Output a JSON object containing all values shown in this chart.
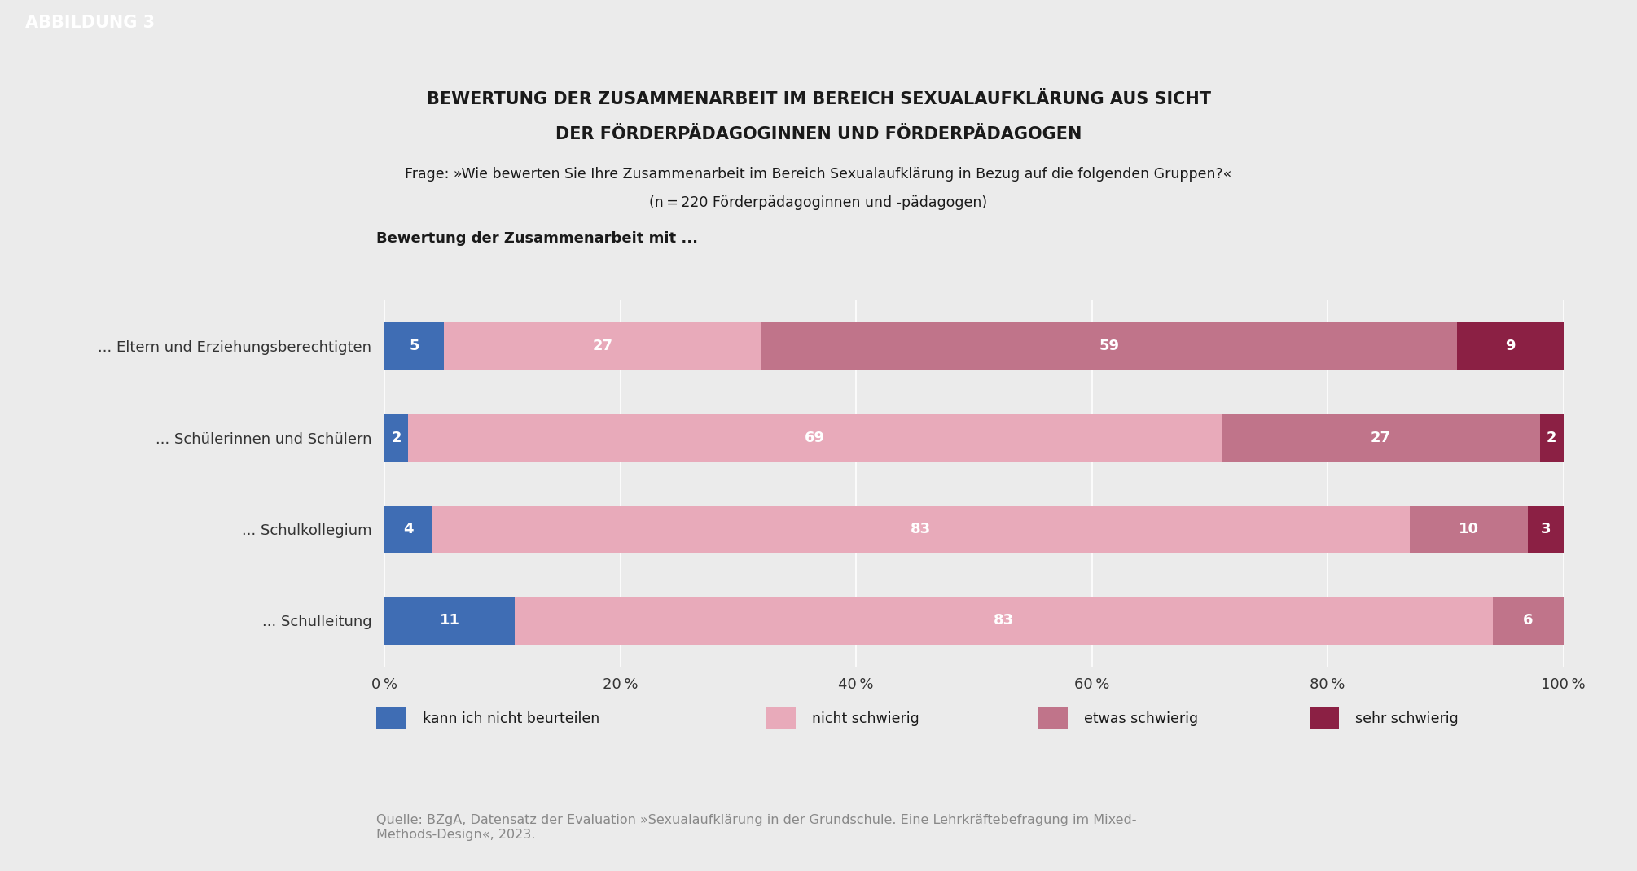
{
  "title_line1": "BEWERTUNG DER ZUSAMMENARBEIT IM BEREICH SEXUALAUFKLÄRUNG AUS SICHT",
  "title_line2": "DER FÖRDERPÄDAGOGINNEN UND FÖRDERPÄDAGOGEN",
  "subtitle_line1": "Frage: »Wie bewerten Sie Ihre Zusammenarbeit im Bereich Sexualaufklärung in Bezug auf die folgenden Gruppen?«",
  "subtitle_line2": "(n = 220 Förderpädagoginnen und -pädagogen)",
  "section_label": "Bewertung der Zusammenarbeit mit ...",
  "abbildung_label": "ABBILDUNG 3",
  "categories": [
    "... Eltern und Erziehungsberechtigten",
    "... Schülerinnen und Schülern",
    "... Schulkollegium",
    "... Schulleitung"
  ],
  "series": {
    "kann ich nicht beurteilen": [
      5,
      2,
      4,
      11
    ],
    "nicht schwierig": [
      27,
      69,
      83,
      83
    ],
    "etwas schwierig": [
      59,
      27,
      10,
      6
    ],
    "sehr schwierig": [
      9,
      2,
      3,
      0
    ]
  },
  "colors": {
    "kann ich nicht beurteilen": "#3F6DB4",
    "nicht schwierig": "#E8AABA",
    "etwas schwierig": "#C0748A",
    "sehr schwierig": "#8B2044"
  },
  "legend_order": [
    "kann ich nicht beurteilen",
    "nicht schwierig",
    "etwas schwierig",
    "sehr schwierig"
  ],
  "source_text": "Quelle: BZgA, Datensatz der Evaluation »Sexualaufklärung in der Grundschule. Eine Lehrkräftebefragung im Mixed-\nMethods-Design«, 2023.",
  "background_color": "#EBEBEB",
  "header_bg_color": "#1A1A1A",
  "header_text_color": "#FFFFFF",
  "bar_height": 0.52,
  "xlim": [
    0,
    100
  ]
}
